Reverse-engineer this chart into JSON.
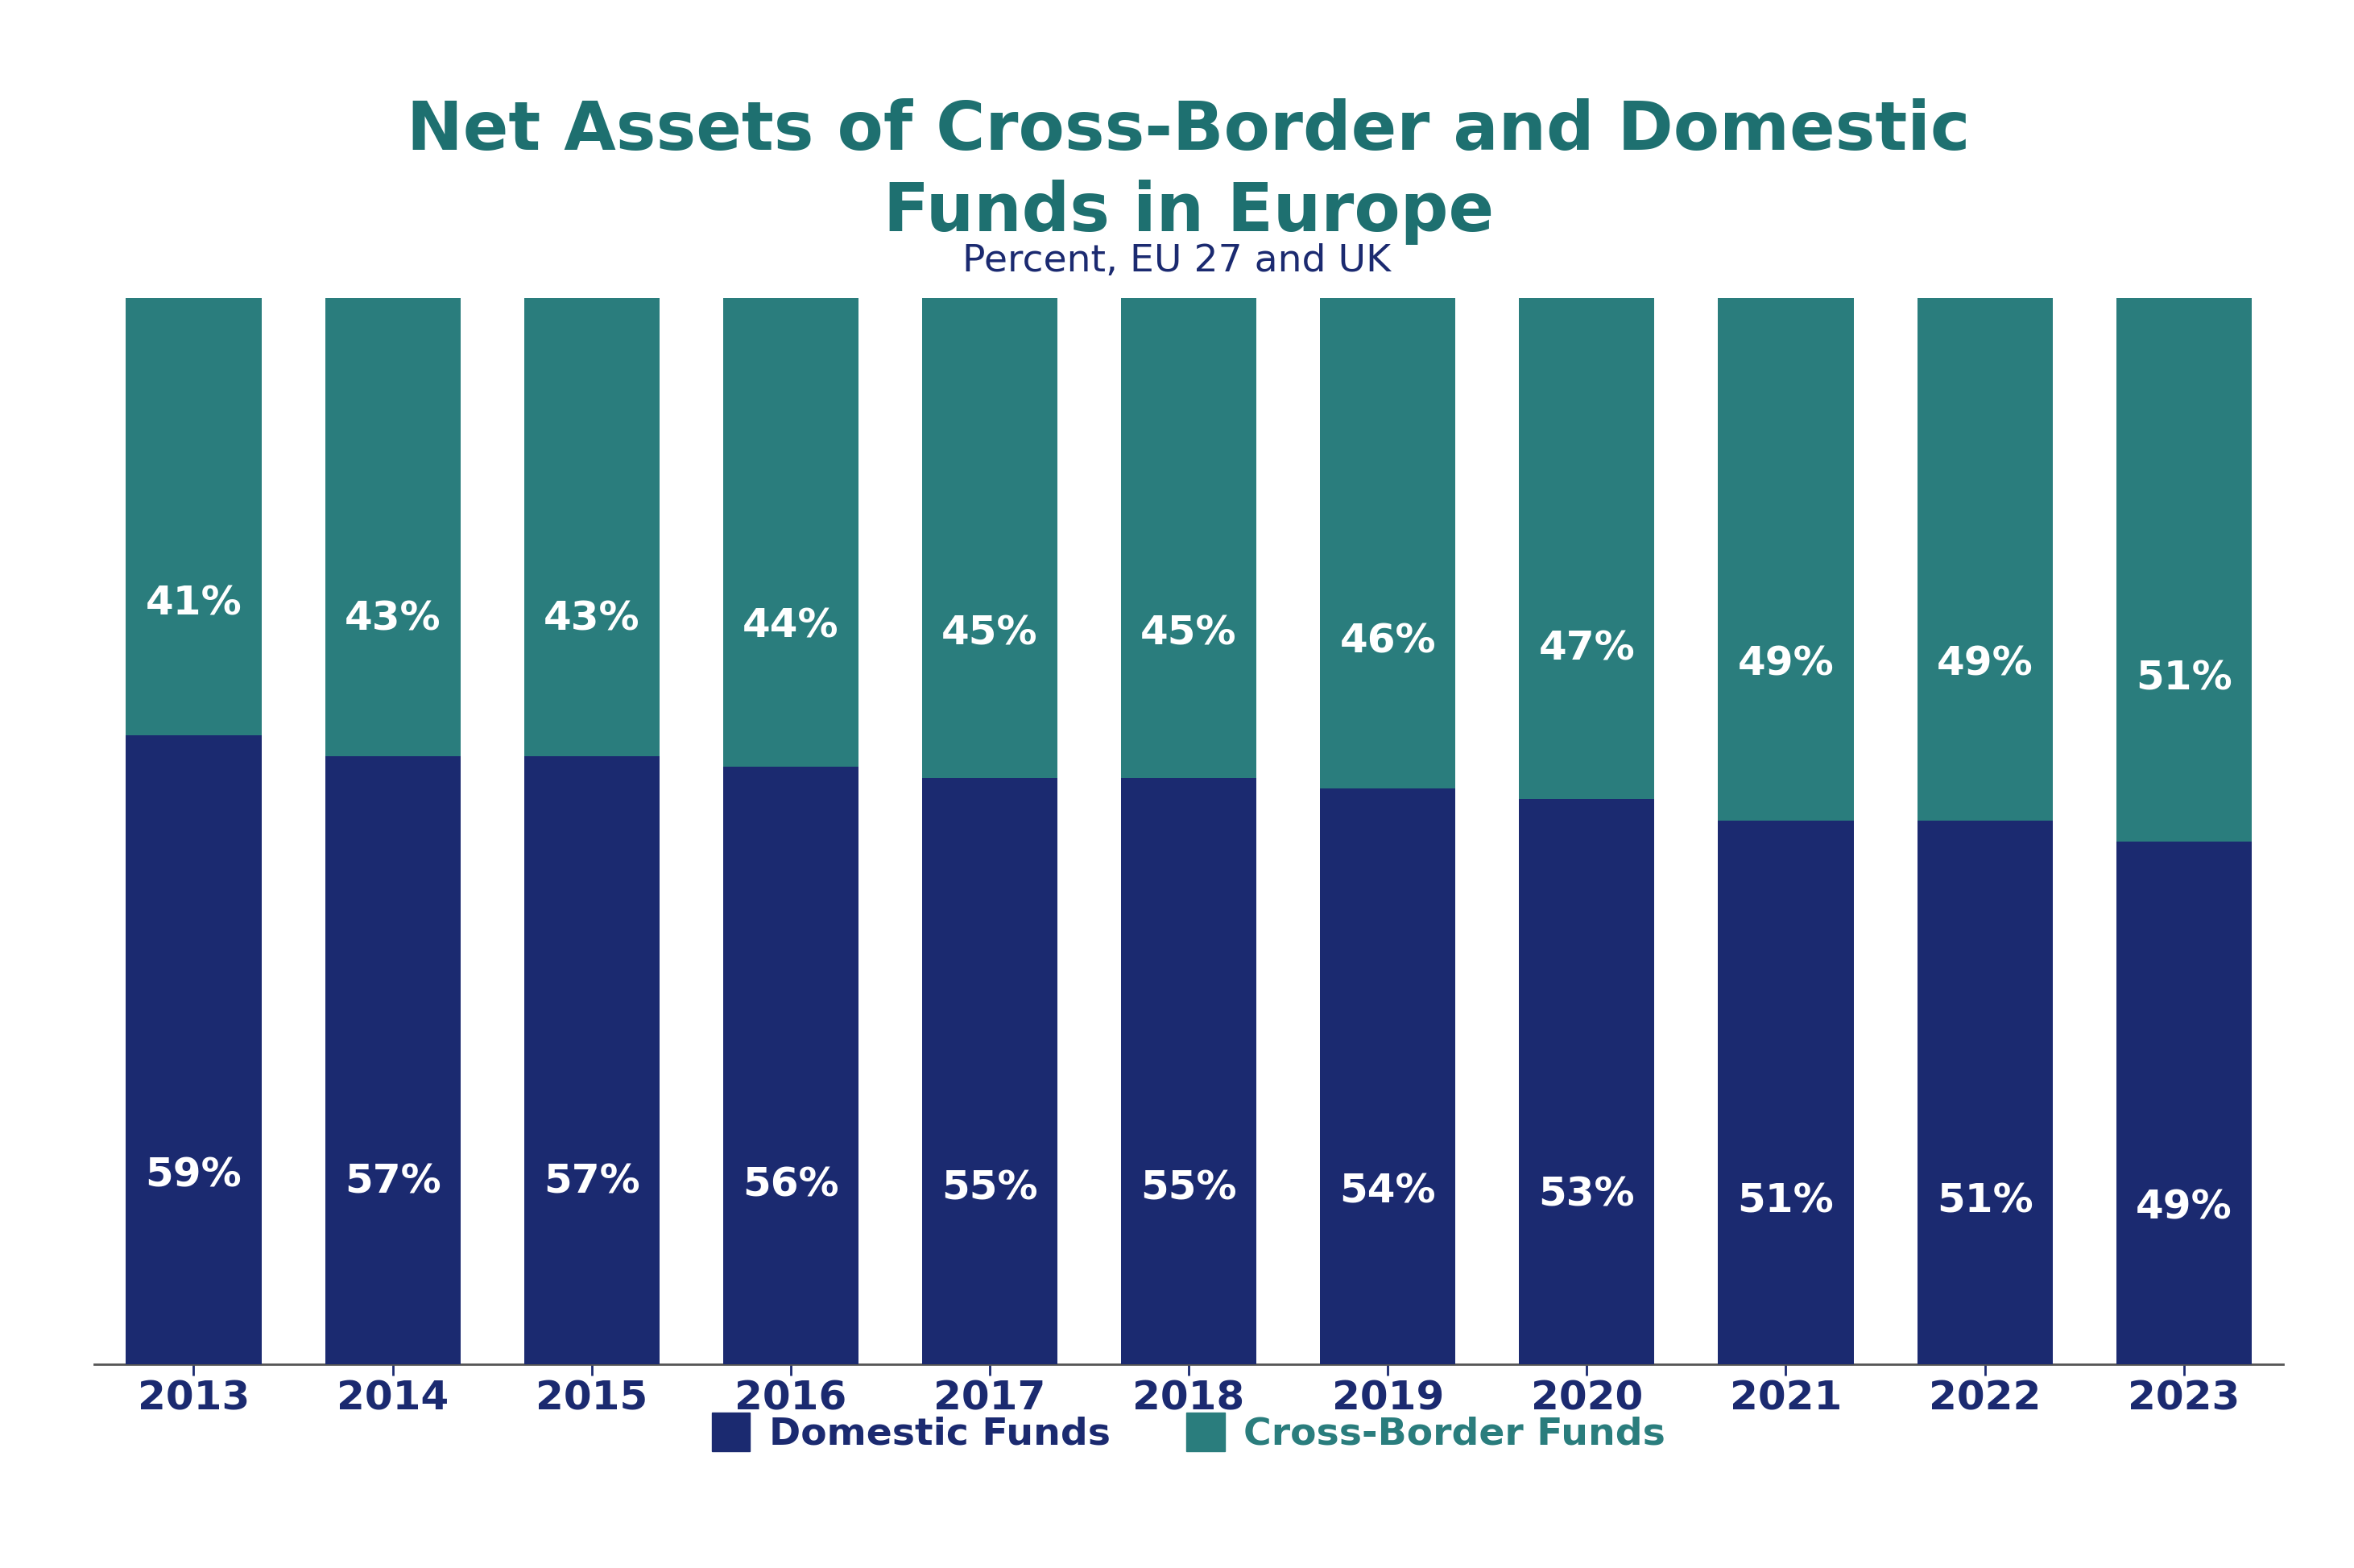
{
  "title": "Net Assets of Cross-Border and Domestic\nFunds in Europe",
  "subtitle": "Percent, EU 27 and UK",
  "years": [
    "2013",
    "2014",
    "2015",
    "2016",
    "2017",
    "2018",
    "2019",
    "2020",
    "2021",
    "2022",
    "2023"
  ],
  "domestic": [
    59,
    57,
    57,
    56,
    55,
    55,
    54,
    53,
    51,
    51,
    49
  ],
  "crossborder": [
    41,
    43,
    43,
    44,
    45,
    45,
    46,
    47,
    49,
    49,
    51
  ],
  "domestic_color": "#1b2a70",
  "crossborder_color": "#2a7d7d",
  "title_color": "#1e7070",
  "subtitle_color": "#1b2a70",
  "year_label_color": "#1b2a70",
  "legend_domestic_color": "#1b2a70",
  "legend_crossborder_color": "#2a7d7d",
  "bar_label_color": "#ffffff",
  "background_color": "#ffffff",
  "title_fontsize": 60,
  "subtitle_fontsize": 34,
  "bar_label_fontsize": 36,
  "tick_fontsize": 36,
  "legend_fontsize": 34
}
